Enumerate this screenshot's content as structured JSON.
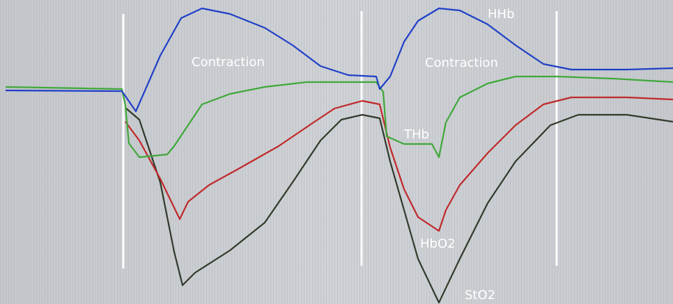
{
  "labels": {
    "contraction_1": "Contraction",
    "contraction_2": "Contraction",
    "hhb": "HHb",
    "thb": "THb",
    "hbo2": "HbO2",
    "sto2": "StO2"
  }
}
